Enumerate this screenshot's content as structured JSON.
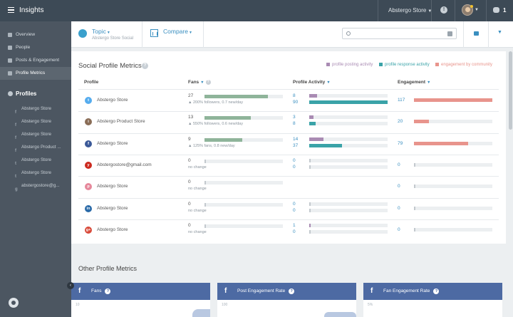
{
  "app": {
    "title": "Insights"
  },
  "topbar": {
    "account": "Abstergo Store",
    "notifications": "1"
  },
  "sidebar": {
    "nav": [
      {
        "label": "Overview",
        "icon": "home-icon"
      },
      {
        "label": "People",
        "icon": "person-icon"
      },
      {
        "label": "Posts & Engagement",
        "icon": "posts-icon"
      },
      {
        "label": "Profile Metrics",
        "icon": "chart-icon",
        "active": true
      }
    ],
    "profiles_header": "Profiles",
    "profiles": [
      {
        "label": "Abstergo Store",
        "icon": "f"
      },
      {
        "label": "Abstergo Store",
        "icon": "f"
      },
      {
        "label": "Abstergo Store",
        "icon": "f"
      },
      {
        "label": "Abstergo Product ...",
        "icon": "f"
      },
      {
        "label": "Abstergo Store",
        "icon": "t"
      },
      {
        "label": "Abstergo Store",
        "icon": "t"
      },
      {
        "label": "abstergostore@g...",
        "icon": "g"
      }
    ]
  },
  "subheader": {
    "topic_label": "Topic",
    "topic_sub": "Abstergo Store Social",
    "compare_label": "Compare",
    "search_placeholder": ""
  },
  "metrics": {
    "title": "Social Profile Metrics",
    "legend": [
      {
        "label": "profile posting activity",
        "color": "#a98bb3"
      },
      {
        "label": "profile response activity",
        "color": "#3aa3a8"
      },
      {
        "label": "engagement by community",
        "color": "#e8948c"
      }
    ],
    "columns": {
      "profile": "Profile",
      "fans": "Fans",
      "activity": "Profile Activity",
      "engagement": "Engagement"
    },
    "rows": [
      {
        "name": "Abstergo Store",
        "network": "twitter",
        "pic_color": "#55acee",
        "pic_glyph": "t",
        "fans": "27",
        "fans_sub": "▲ 200% followers, 0.7 new/day",
        "fans_frac": 0.81,
        "post": "8",
        "resp": "90",
        "post_frac": 0.1,
        "resp_frac": 1.0,
        "eng": "117",
        "eng_frac": 1.0
      },
      {
        "name": "Abstergo Product Store",
        "network": "instagram",
        "pic_color": "#8a6d57",
        "pic_glyph": "i",
        "fans": "13",
        "fans_sub": "▲ 550% followers, 0.6 new/day",
        "fans_frac": 0.59,
        "post": "3",
        "resp": "8",
        "post_frac": 0.05,
        "resp_frac": 0.08,
        "eng": "20",
        "eng_frac": 0.19
      },
      {
        "name": "Abstergo Store",
        "network": "facebook",
        "pic_color": "#3b5998",
        "pic_glyph": "f",
        "fans": "9",
        "fans_sub": "▲ 125% fans, 0.8 new/day",
        "fans_frac": 0.48,
        "post": "14",
        "resp": "37",
        "post_frac": 0.18,
        "resp_frac": 0.42,
        "eng": "79",
        "eng_frac": 0.69
      },
      {
        "name": "Abstergostore@gmail.com",
        "network": "youtube",
        "pic_color": "#cc2a1f",
        "pic_glyph": "y",
        "fans": "0",
        "fans_sub": "no change",
        "fans_frac": 0.0,
        "post": "0",
        "resp": "0",
        "post_frac": 0.0,
        "resp_frac": 0.0,
        "eng": "0",
        "eng_frac": 0.0
      },
      {
        "name": "Abstergo Store",
        "network": "pinterest",
        "pic_color": "#e6889b",
        "pic_glyph": "p",
        "fans": "0",
        "fans_sub": "no change",
        "fans_frac": 0.0,
        "post": "",
        "resp": "",
        "post_frac": 0.0,
        "resp_frac": 0.0,
        "eng": "0",
        "eng_frac": 0.0
      },
      {
        "name": "Abstergo Store",
        "network": "linkedin",
        "pic_color": "#2a6aa8",
        "pic_glyph": "in",
        "fans": "0",
        "fans_sub": "no change",
        "fans_frac": 0.0,
        "post": "0",
        "resp": "0",
        "post_frac": 0.0,
        "resp_frac": 0.0,
        "eng": "0",
        "eng_frac": 0.0
      },
      {
        "name": "Abstergo Store",
        "network": "googleplus",
        "pic_color": "#d84b3b",
        "pic_glyph": "g+",
        "fans": "0",
        "fans_sub": "no change",
        "fans_frac": 0.0,
        "post": "1",
        "resp": "0",
        "post_frac": 0.01,
        "resp_frac": 0.0,
        "eng": "0",
        "eng_frac": 0.0
      }
    ]
  },
  "other": {
    "title": "Other Profile Metrics",
    "cards": [
      {
        "label": "Fans",
        "tick": "10"
      },
      {
        "label": "Post Engagement Rate",
        "tick": "100"
      },
      {
        "label": "Fan Engagement Rate",
        "tick": "5%"
      }
    ]
  }
}
